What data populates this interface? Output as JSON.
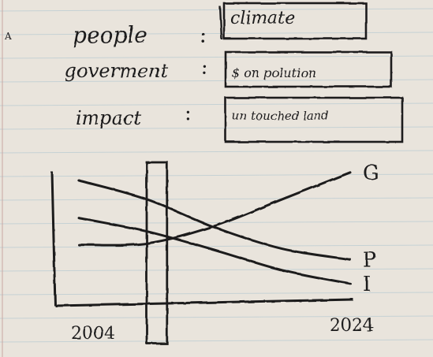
{
  "margin_mark": "A",
  "legend_boxes": [
    {
      "label": "people",
      "value": "climate"
    },
    {
      "label": "goverment",
      "value": "$ on polution"
    },
    {
      "label": "impact",
      "value": "un touched land"
    }
  ],
  "colors": {
    "paper": "#e9e4dc",
    "rule": "#a9c3cf",
    "ink": "#1c1a1d"
  },
  "chart_data": {
    "type": "line",
    "x": [
      2004,
      2009,
      2014,
      2019,
      2024
    ],
    "xlim": [
      2004,
      2024
    ],
    "x_tick_labels": [
      "2004",
      "2024"
    ],
    "grid": false,
    "series": [
      {
        "name": "G",
        "values": [
          0.42,
          0.43,
          0.56,
          0.76,
          0.96
        ]
      },
      {
        "name": "P",
        "values": [
          0.9,
          0.76,
          0.55,
          0.39,
          0.31
        ]
      },
      {
        "name": "I",
        "values": [
          0.62,
          0.52,
          0.38,
          0.23,
          0.13
        ]
      }
    ],
    "highlight_band": {
      "from": 2009,
      "to": 2010.5
    }
  }
}
